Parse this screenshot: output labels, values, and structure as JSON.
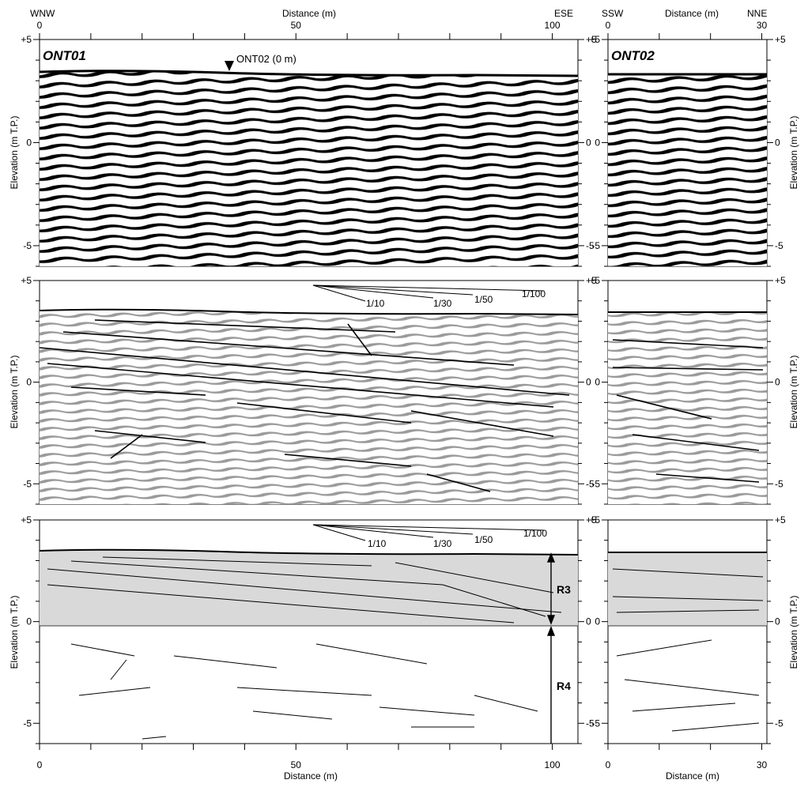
{
  "figure": {
    "colors": {
      "trace": "#000000",
      "interp_gray": "#9a9a9a",
      "unit_fill": "#d9d9d9",
      "frame": "#000000"
    },
    "left_profile": {
      "name": "ONT01",
      "dir_left": "WNW",
      "dir_right": "ESE",
      "dist_axis_label": "Distance (m)",
      "dist_ticks": [
        "0",
        "50",
        "100"
      ],
      "dist_max_m": 105,
      "marker_label": "ONT02 (0 m)",
      "marker_at_m": 37
    },
    "right_profile": {
      "name": "ONT02",
      "dir_left": "SSW",
      "dir_right": "NNE",
      "dist_axis_label": "Distance (m)",
      "dist_ticks": [
        "0",
        "30"
      ],
      "dist_max_m": 31
    },
    "elevation": {
      "axis_label": "Elevation (m T.P.)",
      "ticks": [
        "+5",
        "0",
        "-5"
      ],
      "top_m": 5,
      "bottom_m": -6
    },
    "slope_labels": [
      "1/10",
      "1/30",
      "1/50",
      "1/100"
    ],
    "units": {
      "upper": "R3",
      "lower": "R4",
      "boundary_elevation_m": 0
    }
  }
}
